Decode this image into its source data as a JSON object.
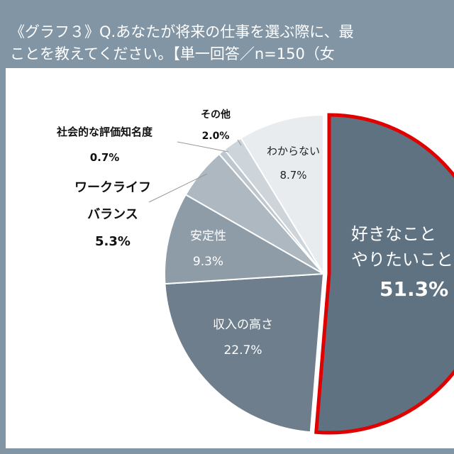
{
  "title_line1": "《グラフ３》Q.あなたが将来の仕事を選ぶ際に、最",
  "title_line2": "ことを教えてください。【単一回答／n=150（女",
  "chart_data": {
    "type": "pie",
    "start": "12 o'clock, clockwise",
    "highlight": "好きなこと やりたいこと",
    "highlight_color": "#e00000",
    "slices": [
      {
        "label": "好きなこと やりたいこと",
        "label_lines": [
          "好きなこと",
          "やりたいこと"
        ],
        "value": 51.3,
        "value_text": "51.3%",
        "color": "#5f7282"
      },
      {
        "label": "収入の高さ",
        "value": 22.7,
        "value_text": "22.7%",
        "color": "#6e7e8c"
      },
      {
        "label": "安定性",
        "value": 9.3,
        "value_text": "9.3%",
        "color": "#8e9ca8"
      },
      {
        "label": "ワークライフバランス",
        "label_lines": [
          "ワークライフ",
          "バランス"
        ],
        "value": 5.3,
        "value_text": "5.3%",
        "color": "#adb8c1"
      },
      {
        "label": "社会的な評価知名度",
        "value": 0.7,
        "value_text": "0.7%",
        "color": "#bec7ce"
      },
      {
        "label": "その他",
        "value": 2.0,
        "value_text": "2.0%",
        "color": "#cdd4da"
      },
      {
        "label": "わからない",
        "value": 8.7,
        "value_text": "8.7%",
        "color": "#e9ecef"
      }
    ]
  }
}
